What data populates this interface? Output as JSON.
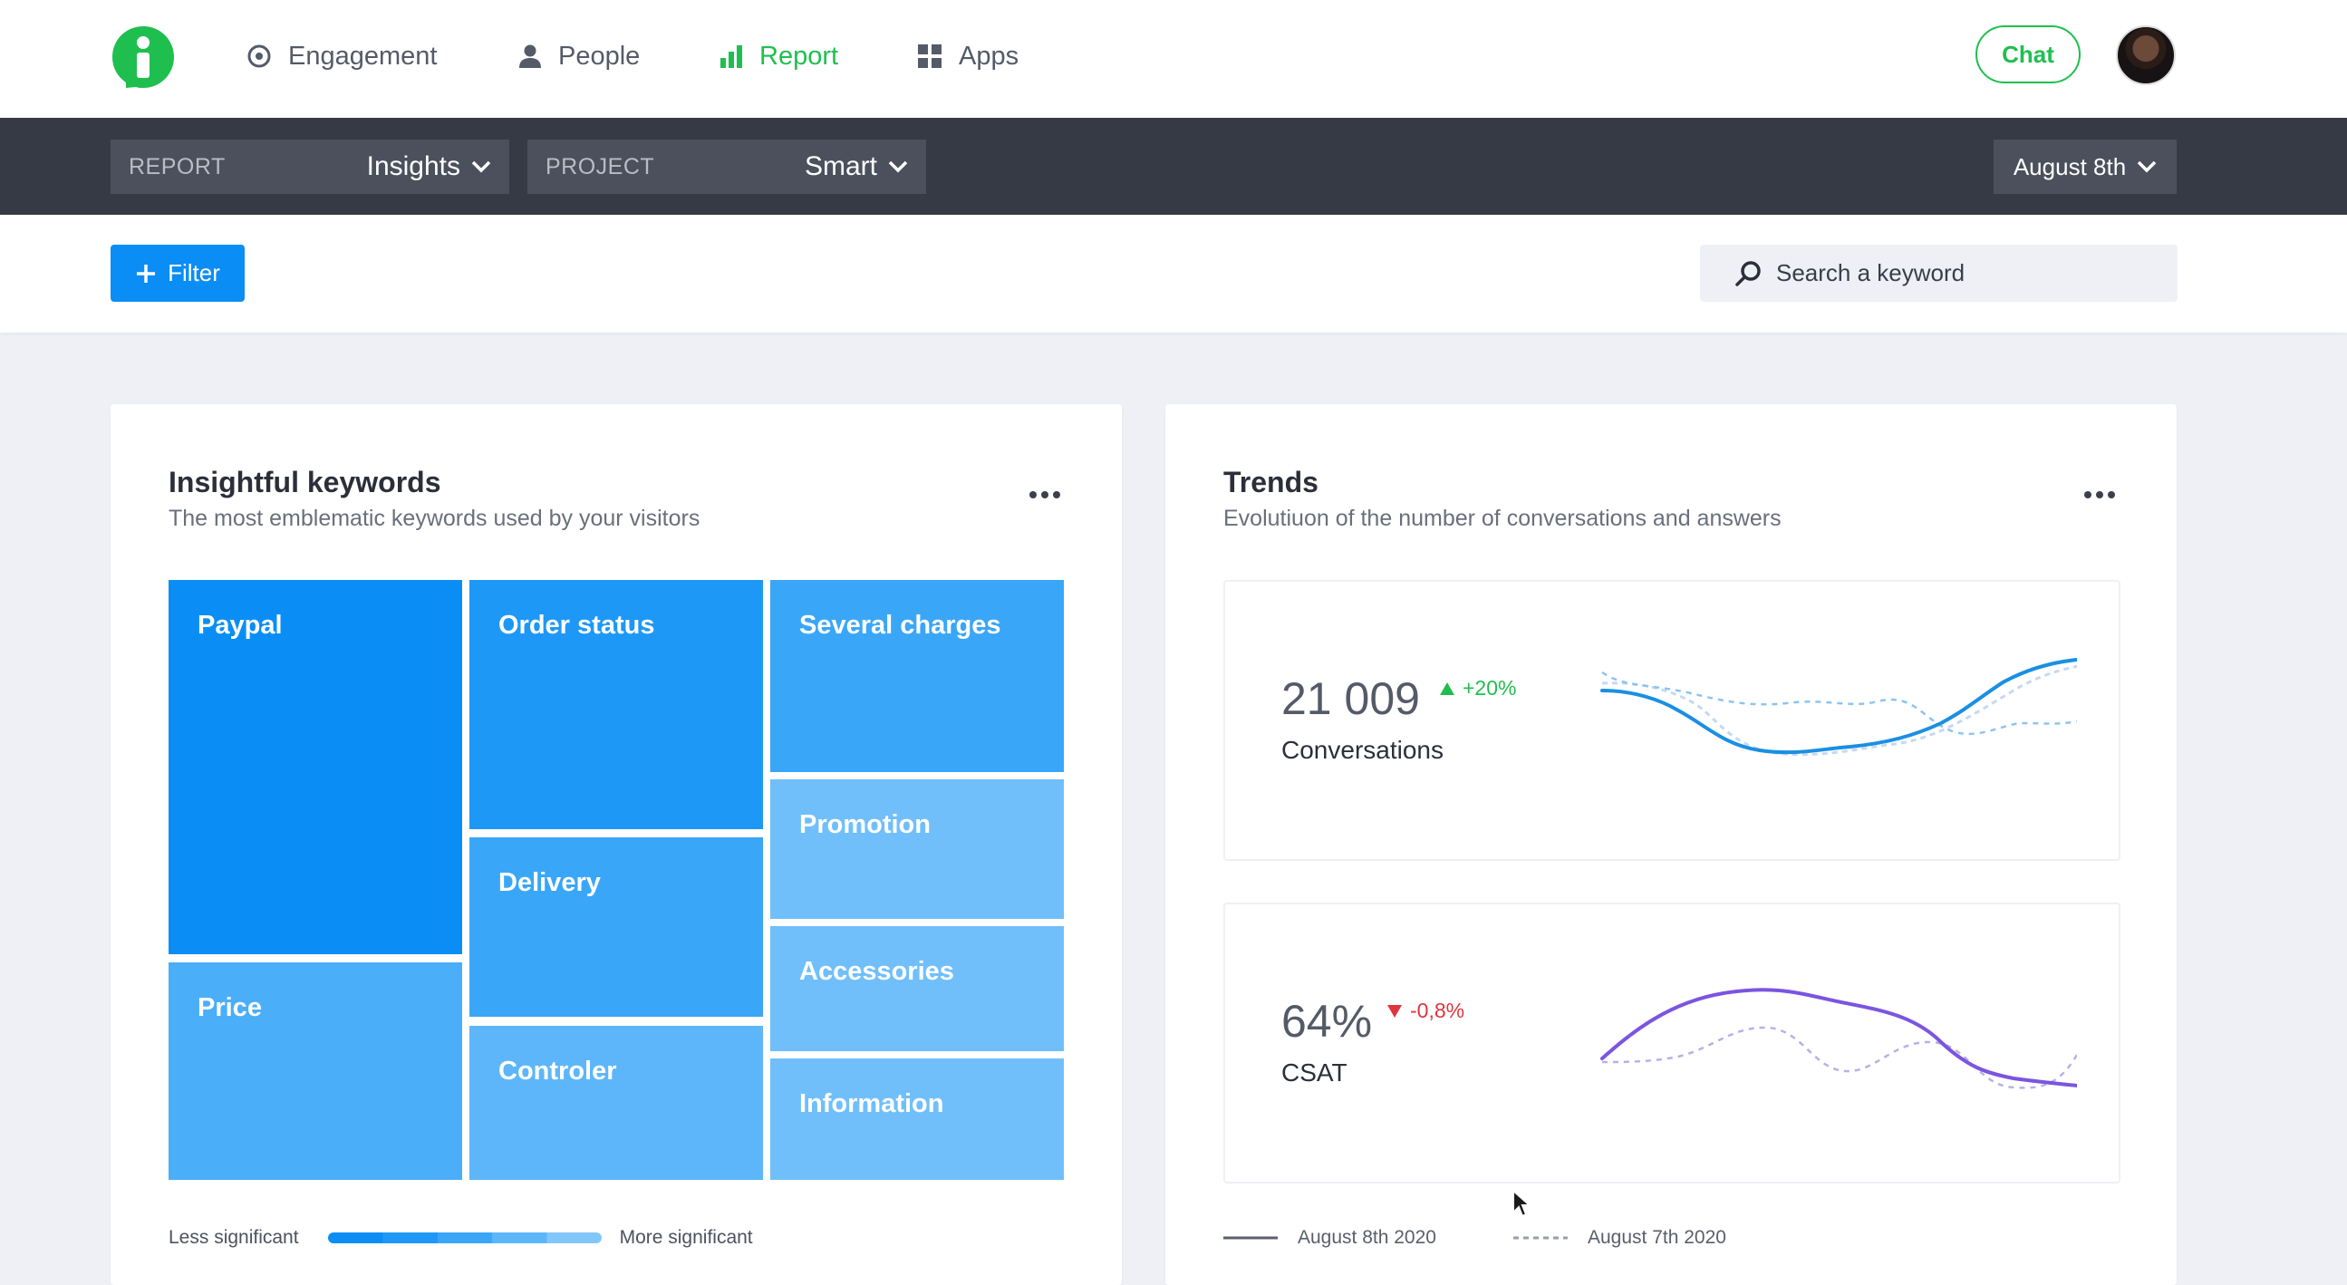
{
  "nav": {
    "items": [
      {
        "label": "Engagement",
        "icon": "target-icon"
      },
      {
        "label": "People",
        "icon": "person-icon"
      },
      {
        "label": "Report",
        "icon": "bar-chart-icon",
        "active": true
      },
      {
        "label": "Apps",
        "icon": "grid-icon"
      }
    ],
    "chat_label": "Chat"
  },
  "subbar": {
    "report_label": "REPORT",
    "report_value": "Insights",
    "project_label": "PROJECT",
    "project_value": "Smart",
    "date_value": "August 8th"
  },
  "filterbar": {
    "filter_label": "Filter",
    "search_placeholder": "Search a keyword"
  },
  "keywords_card": {
    "title": "Insightful keywords",
    "subtitle": "The most emblematic keywords used by your visitors",
    "tiles": [
      "Paypal",
      "Price",
      "Order status",
      "Delivery",
      "Controler",
      "Several charges",
      "Promotion",
      "Accessories",
      "Information"
    ],
    "scale_less": "Less significant",
    "scale_more": "More significant"
  },
  "trends_card": {
    "title": "Trends",
    "subtitle": "Evolutiuon of the number of conversations and answers",
    "metrics": [
      {
        "value": "21 009",
        "change": "+20%",
        "direction": "up",
        "label": "Conversations",
        "color": "#1a8fe3"
      },
      {
        "value": "64%",
        "change": "-0,8%",
        "direction": "down",
        "label": "CSAT",
        "color": "#7b55e0"
      }
    ],
    "legend": [
      {
        "label": "August 8th 2020",
        "style": "solid"
      },
      {
        "label": "August 7th 2020",
        "style": "dashed"
      }
    ]
  },
  "colors": {
    "brand_green": "#1fbf4f",
    "primary_blue": "#0a8ef5",
    "up_green": "#1fbf4f",
    "down_red": "#e0353d"
  }
}
